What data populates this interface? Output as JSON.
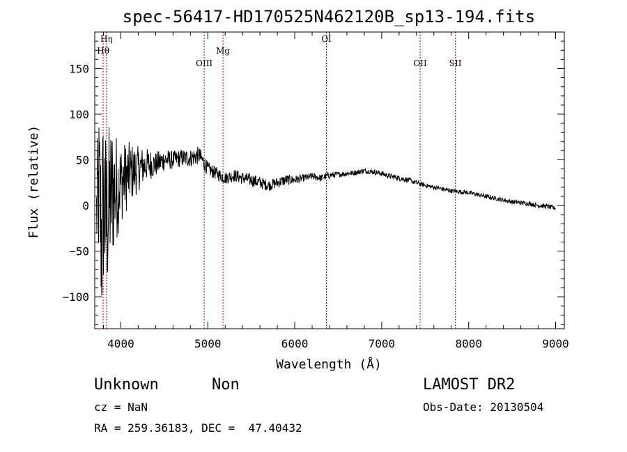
{
  "chart_data": {
    "type": "line",
    "title": "spec-56417-HD170525N462120B_sp13-194.fits",
    "xlabel": "Wavelength (Å)",
    "ylabel": "Flux (relative)",
    "xlim": [
      3700,
      9100
    ],
    "ylim": [
      -135,
      190
    ],
    "xticks": [
      4000,
      5000,
      6000,
      7000,
      8000,
      9000
    ],
    "yticks": [
      -100,
      -50,
      0,
      50,
      100,
      150
    ],
    "xtick_labels": [
      "4000",
      "5000",
      "6000",
      "7000",
      "8000",
      "9000"
    ],
    "ytick_labels": [
      "−100",
      "−50",
      "0",
      "50",
      "100",
      "150"
    ],
    "grid": false,
    "series": [
      {
        "x": [
          3720,
          3750,
          3780,
          3800,
          3830,
          3860,
          3900,
          3950,
          4000,
          4100,
          4200,
          4300,
          4400,
          4500,
          4600,
          4700,
          4800,
          4900,
          5000,
          5100,
          5200,
          5300,
          5400,
          5500,
          5600,
          5700,
          5800,
          5900,
          6000,
          6100,
          6200,
          6300,
          6400,
          6500,
          6600,
          6700,
          6800,
          6900,
          7000,
          7100,
          7200,
          7300,
          7400,
          7500,
          7600,
          7700,
          7800,
          7900,
          8000,
          8100,
          8200,
          8300,
          8400,
          8500,
          8600,
          8700,
          8800,
          8900,
          9000
        ],
        "values": [
          -10,
          20,
          -40,
          10,
          -20,
          0,
          15,
          20,
          25,
          35,
          40,
          45,
          45,
          50,
          50,
          52,
          52,
          55,
          40,
          35,
          30,
          33,
          30,
          28,
          25,
          22,
          25,
          28,
          28,
          30,
          32,
          30,
          33,
          34,
          35,
          36,
          38,
          37,
          35,
          32,
          30,
          28,
          25,
          22,
          20,
          18,
          16,
          15,
          14,
          12,
          10,
          8,
          6,
          4,
          3,
          2,
          0,
          -1,
          -3
        ],
        "noise": [
          60,
          90,
          110,
          110,
          100,
          90,
          80,
          60,
          45,
          35,
          25,
          18,
          14,
          12,
          10,
          10,
          10,
          10,
          8,
          7,
          7,
          7,
          7,
          7,
          7,
          6,
          6,
          6,
          5,
          4,
          4,
          4,
          4,
          3,
          3,
          3,
          3,
          3,
          3,
          3,
          3,
          3,
          2.5,
          2.5,
          2.5,
          2.5,
          2.5,
          2.5,
          2.5,
          2.5,
          2.5,
          2.5,
          2.5,
          2.5,
          2.5,
          2.5,
          2.5,
          2.5,
          2.5
        ]
      }
    ],
    "spectral_lines": [
      {
        "label": "Hη",
        "x": 3835,
        "row": 0
      },
      {
        "label": "Hθ",
        "x": 3797,
        "row": 1
      },
      {
        "label": "OIII",
        "x": 4959,
        "row": 2
      },
      {
        "label": "Mg",
        "x": 5175,
        "row": 1
      },
      {
        "label": "OI",
        "x": 6364,
        "row": 0
      },
      {
        "label": "OII",
        "x": 7442,
        "row": 2
      },
      {
        "label": "SII",
        "x": 7847,
        "row": 2
      }
    ],
    "line_color": "#b00000",
    "data_color": "#000000"
  },
  "info": {
    "object_class": "Unknown",
    "subclass": "Non",
    "survey": "LAMOST DR2",
    "redshift": "cz = NaN",
    "obs_date": "Obs-Date: 20130504",
    "coords": "RA = 259.36183, DEC =  47.40432"
  }
}
